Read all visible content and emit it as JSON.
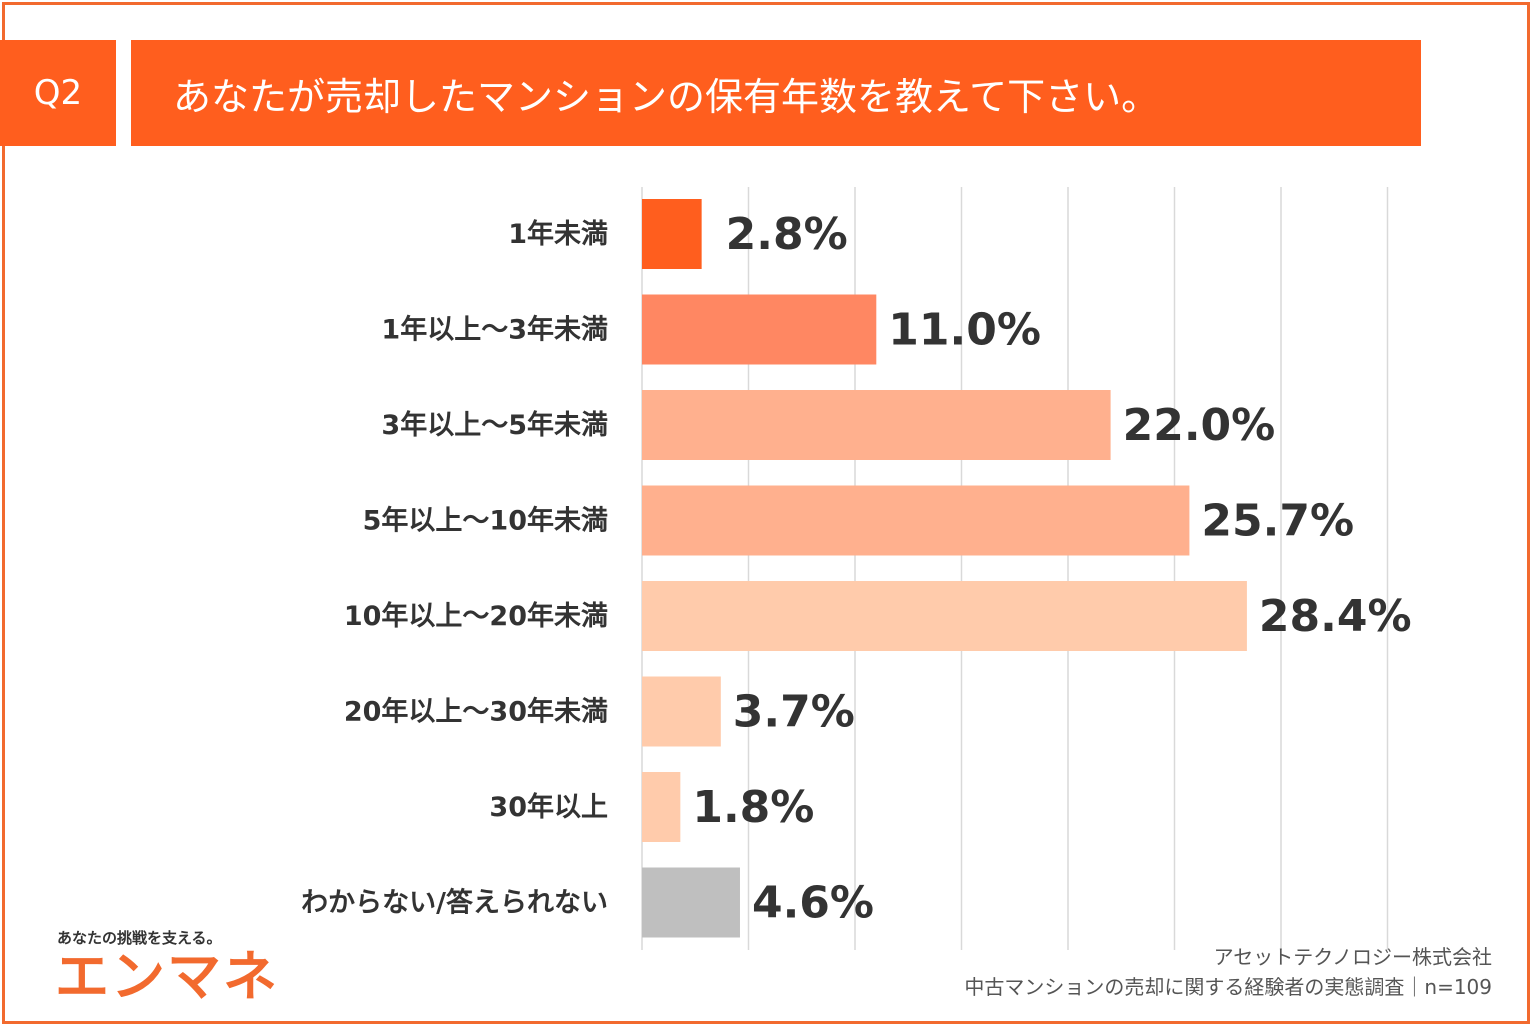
{
  "header": {
    "badge": "Q2",
    "question": "あなたが売却したマンションの保有年数を教えて下さい。"
  },
  "chart_data": {
    "type": "bar",
    "orientation": "horizontal",
    "categories": [
      "1年未満",
      "1年以上〜3年未満",
      "3年以上〜5年未満",
      "5年以上〜10年未満",
      "10年以上〜20年未満",
      "20年以上〜30年未満",
      "30年以上",
      "わからない/答えられない"
    ],
    "values": [
      2.8,
      11.0,
      22.0,
      25.7,
      28.4,
      3.7,
      1.8,
      4.6
    ],
    "value_labels": [
      "2.8%",
      "11.0%",
      "22.0%",
      "25.7%",
      "28.4%",
      "3.7%",
      "1.8%",
      "4.6%"
    ],
    "colors": [
      "#ff5e1e",
      "#ff8762",
      "#ffb08e",
      "#ffb08e",
      "#ffcbab",
      "#ffcbab",
      "#ffcbab",
      "#bfbfbf"
    ],
    "xlim": [
      0,
      35
    ],
    "grid": true,
    "gridline_color": "#d9d9d9"
  },
  "branding": {
    "tagline": "あなたの挑戦を支える。",
    "logo": "エンマネ",
    "accent_color": "#f26a2e"
  },
  "footer": {
    "source_line1": "アセットテクノロジー株式会社",
    "source_line2": "中古マンションの売却に関する経験者の実態調査｜n=109"
  }
}
